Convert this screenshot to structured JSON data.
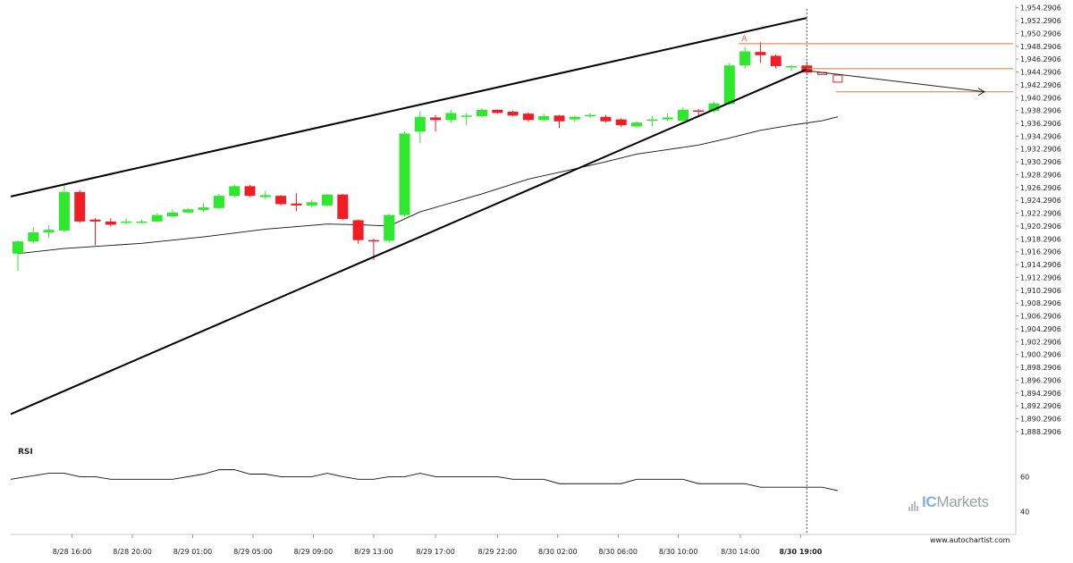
{
  "chart_data": {
    "type": "candlestick",
    "x_labels": [
      "8/28 16:00",
      "8/28 20:00",
      "8/29 01:00",
      "8/29 05:00",
      "8/29 09:00",
      "8/29 13:00",
      "8/29 17:00",
      "8/29 22:00",
      "8/30 02:00",
      "8/30 06:00",
      "8/30 10:00",
      "8/30 14:00",
      "8/30 19:00"
    ],
    "y_ticks": [
      "1,954.2906",
      "1,952.2906",
      "1,950.2906",
      "1,948.2906",
      "1,946.2906",
      "1,944.2906",
      "1,942.2906",
      "1,940.2906",
      "1,938.2906",
      "1,936.2906",
      "1,934.2906",
      "1,932.2906",
      "1,930.2906",
      "1,928.2906",
      "1,926.2906",
      "1,924.2906",
      "1,922.2906",
      "1,920.2906",
      "1,918.2906",
      "1,916.2906",
      "1,914.2906",
      "1,912.2906",
      "1,910.2906",
      "1,908.2906",
      "1,906.2906",
      "1,904.2906",
      "1,902.2906",
      "1,900.2906",
      "1,898.2906",
      "1,896.2906",
      "1,894.2906",
      "1,892.2906",
      "1,890.2906",
      "1,888.2906"
    ],
    "ylim": [
      1887.3,
      1954.8
    ],
    "bullish_color": "#2ee82e",
    "bearish_color": "#f01d24",
    "candles": [
      [
        1916.0,
        1917.9,
        1913.3,
        1918.1
      ],
      [
        1917.9,
        1919.3,
        1917.6,
        1920.1
      ],
      [
        1919.3,
        1919.7,
        1918.5,
        1920.4
      ],
      [
        1919.6,
        1925.6,
        1919.3,
        1926.6
      ],
      [
        1925.6,
        1921.0,
        1920.8,
        1925.9
      ],
      [
        1921.3,
        1921.0,
        1917.3,
        1921.5
      ],
      [
        1921.0,
        1920.5,
        1920.2,
        1921.5
      ],
      [
        1920.8,
        1921.0,
        1920.6,
        1921.5
      ],
      [
        1920.8,
        1921.0,
        1920.7,
        1921.3
      ],
      [
        1921.0,
        1922.0,
        1920.9,
        1922.3
      ],
      [
        1921.8,
        1922.4,
        1921.6,
        1922.9
      ],
      [
        1922.4,
        1922.9,
        1922.3,
        1923.1
      ],
      [
        1922.8,
        1923.2,
        1922.5,
        1923.9
      ],
      [
        1923.1,
        1925.0,
        1922.9,
        1925.3
      ],
      [
        1925.0,
        1926.5,
        1924.7,
        1926.8
      ],
      [
        1926.5,
        1925.0,
        1924.8,
        1926.7
      ],
      [
        1924.8,
        1925.1,
        1924.5,
        1925.8
      ],
      [
        1925.0,
        1923.7,
        1923.5,
        1925.1
      ],
      [
        1923.8,
        1923.5,
        1922.6,
        1925.4
      ],
      [
        1923.5,
        1924.0,
        1923.2,
        1924.4
      ],
      [
        1923.5,
        1925.2,
        1923.3,
        1925.3
      ],
      [
        1925.2,
        1921.4,
        1921.2,
        1925.3
      ],
      [
        1921.2,
        1918.1,
        1917.5,
        1921.3
      ],
      [
        1918.1,
        1918.0,
        1915.0,
        1918.3
      ],
      [
        1918.0,
        1922.0,
        1917.8,
        1922.2
      ],
      [
        1922.0,
        1934.7,
        1921.8,
        1935.0
      ],
      [
        1935.0,
        1937.3,
        1933.2,
        1938.2
      ],
      [
        1937.2,
        1936.8,
        1935.0,
        1937.6
      ],
      [
        1936.8,
        1937.9,
        1936.4,
        1938.4
      ],
      [
        1937.5,
        1937.5,
        1936.0,
        1937.9
      ],
      [
        1937.4,
        1938.4,
        1937.2,
        1938.6
      ],
      [
        1938.4,
        1937.9,
        1937.8,
        1938.4
      ],
      [
        1938.1,
        1937.5,
        1937.4,
        1938.2
      ],
      [
        1937.8,
        1936.8,
        1936.5,
        1938.0
      ],
      [
        1936.8,
        1937.4,
        1936.6,
        1937.8
      ],
      [
        1937.5,
        1936.6,
        1935.6,
        1937.6
      ],
      [
        1936.9,
        1937.3,
        1936.5,
        1937.5
      ],
      [
        1937.4,
        1937.6,
        1937.1,
        1937.9
      ],
      [
        1937.3,
        1936.6,
        1936.4,
        1937.6
      ],
      [
        1936.9,
        1936.0,
        1935.7,
        1937.1
      ],
      [
        1935.8,
        1936.4,
        1935.6,
        1936.6
      ],
      [
        1936.7,
        1936.9,
        1935.8,
        1937.4
      ],
      [
        1936.9,
        1937.2,
        1936.7,
        1937.8
      ],
      [
        1936.7,
        1938.4,
        1936.6,
        1938.8
      ],
      [
        1938.3,
        1938.1,
        1937.4,
        1938.5
      ],
      [
        1938.2,
        1939.4,
        1938.0,
        1939.6
      ],
      [
        1939.3,
        1945.3,
        1939.2,
        1945.7
      ],
      [
        1945.3,
        1947.5,
        1944.8,
        1948.2
      ],
      [
        1947.4,
        1946.9,
        1945.7,
        1948.9
      ],
      [
        1946.8,
        1945.2,
        1944.8,
        1947.0
      ],
      [
        1945.1,
        1945.2,
        1944.5,
        1945.4
      ],
      [
        1945.3,
        1944.2,
        1944.1,
        1945.9
      ]
    ],
    "forecast_candles": [
      [
        1944.2,
        1943.9
      ],
      [
        1943.8,
        1942.7
      ]
    ],
    "ma_line": [
      [
        0,
        1916.0
      ],
      [
        3,
        1916.8
      ],
      [
        8,
        1917.6
      ],
      [
        12,
        1918.6
      ],
      [
        16,
        1919.8
      ],
      [
        20,
        1920.6
      ],
      [
        22,
        1920.5
      ],
      [
        24,
        1920.3
      ],
      [
        26,
        1922.5
      ],
      [
        30,
        1925.3
      ],
      [
        33,
        1927.6
      ],
      [
        36,
        1929.2
      ],
      [
        38,
        1930.3
      ],
      [
        40,
        1931.5
      ],
      [
        42,
        1932.2
      ],
      [
        44,
        1932.9
      ],
      [
        46,
        1934.0
      ],
      [
        48,
        1935.2
      ],
      [
        50,
        1936.0
      ],
      [
        52,
        1936.7
      ],
      [
        53,
        1937.3
      ]
    ],
    "pattern": {
      "upper_line": [
        [
          0,
          1924.9
        ],
        [
          51,
          1952.7
        ]
      ],
      "lower_line": [
        [
          0,
          1891.0
        ],
        [
          51,
          1944.7
        ]
      ],
      "forecast_arrow": [
        [
          51,
          1944.5
        ],
        [
          64,
          1941.2
        ]
      ],
      "level_lines": [
        1948.7,
        1944.8,
        1941.2
      ],
      "peak_label": "A",
      "vline_x_label": "8/30 19:00"
    },
    "rsi": {
      "label": "RSI",
      "ticks": [
        "60",
        "40"
      ],
      "points": [
        [
          0,
          58.5
        ],
        [
          2,
          62.0
        ],
        [
          3,
          62.0
        ],
        [
          4,
          60.0
        ],
        [
          5,
          60.0
        ],
        [
          6,
          58.5
        ],
        [
          10,
          58.5
        ],
        [
          12,
          61.5
        ],
        [
          13,
          64.0
        ],
        [
          14,
          64.0
        ],
        [
          15,
          61.5
        ],
        [
          16,
          61.5
        ],
        [
          17,
          60.0
        ],
        [
          19,
          60.0
        ],
        [
          20,
          62.0
        ],
        [
          21,
          60.0
        ],
        [
          22,
          58.5
        ],
        [
          23,
          58.5
        ],
        [
          24,
          60.0
        ],
        [
          25,
          60.0
        ],
        [
          26,
          62.0
        ],
        [
          27,
          60.0
        ],
        [
          31,
          60.0
        ],
        [
          32,
          58.5
        ],
        [
          34,
          58.5
        ],
        [
          35,
          56.0
        ],
        [
          39,
          56.0
        ],
        [
          40,
          58.5
        ],
        [
          43,
          58.5
        ],
        [
          44,
          56.0
        ],
        [
          47,
          56.0
        ],
        [
          48,
          54.0
        ],
        [
          52,
          54.0
        ],
        [
          53,
          52.0
        ]
      ]
    }
  },
  "footer": {
    "brand_ic": "IC",
    "brand_rest": "Markets",
    "url": "www.autochartist.com"
  }
}
